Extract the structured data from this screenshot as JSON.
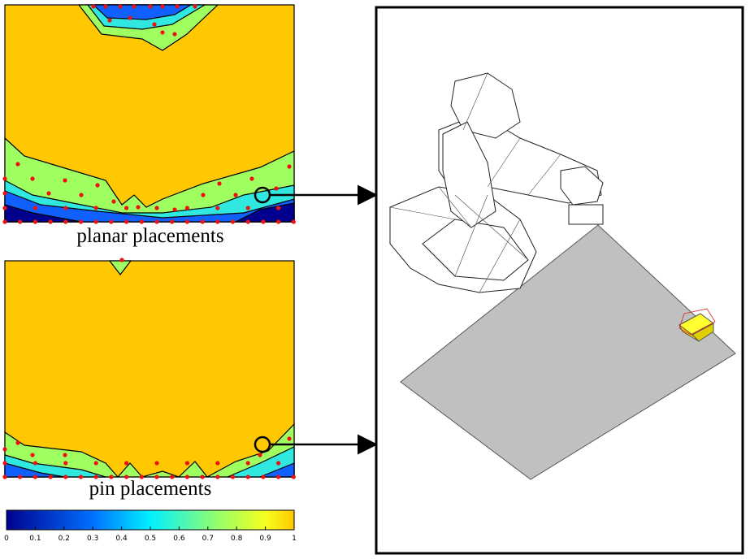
{
  "labels": {
    "top": "planar placements",
    "bottom": "pin placements"
  },
  "colorbar": {
    "ticks": [
      0,
      0.1,
      0.2,
      0.3,
      0.4,
      0.5,
      0.6,
      0.7,
      0.8,
      0.9,
      1
    ]
  }
}
